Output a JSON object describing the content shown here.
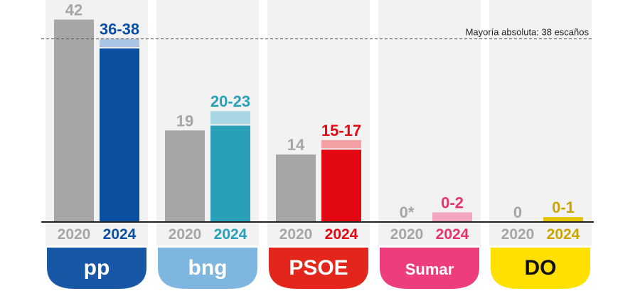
{
  "chart_data": {
    "type": "bar",
    "years": [
      "2020",
      "2024"
    ],
    "annotation": "Mayoría absoluta: 38 escaños",
    "majority": 38,
    "ylim": [
      0,
      44
    ],
    "parties": [
      {
        "name": "pp",
        "value_2020": 42,
        "label_2020": "42",
        "range_2024": [
          36,
          38
        ],
        "label_2024": "36-38",
        "color": "#0a4fa0",
        "color_light": "#a9c4e4",
        "badge_color": "#1757a6"
      },
      {
        "name": "bng",
        "value_2020": 19,
        "label_2020": "19",
        "range_2024": [
          20,
          23
        ],
        "label_2024": "20-23",
        "color": "#2a9fb8",
        "color_light": "#a8d6e2",
        "badge_color": "#7fb6e0"
      },
      {
        "name": "PSOE",
        "value_2020": 14,
        "label_2020": "14",
        "range_2024": [
          15,
          17
        ],
        "label_2024": "15-17",
        "color": "#e30613",
        "color_light": "#f2a0a4",
        "badge_color": "#e2261c"
      },
      {
        "name": "Sumar",
        "value_2020": 0,
        "label_2020": "0*",
        "range_2024": [
          0,
          2
        ],
        "label_2024": "0-2",
        "color": "#e6336f",
        "color_light": "#f3a6c0",
        "badge_color": "#ee3d7c"
      },
      {
        "name": "DO",
        "value_2020": 0,
        "label_2020": "0",
        "range_2024": [
          0,
          1
        ],
        "label_2024": "0-1",
        "color": "#c9a400",
        "color_light": "#e2c400",
        "badge_color": "#ffe000"
      }
    ]
  },
  "colors": {
    "bar_2020": "#a6a6a6",
    "label_2020": "#a6a6a6",
    "panel_bg": "#f2f2f2"
  }
}
